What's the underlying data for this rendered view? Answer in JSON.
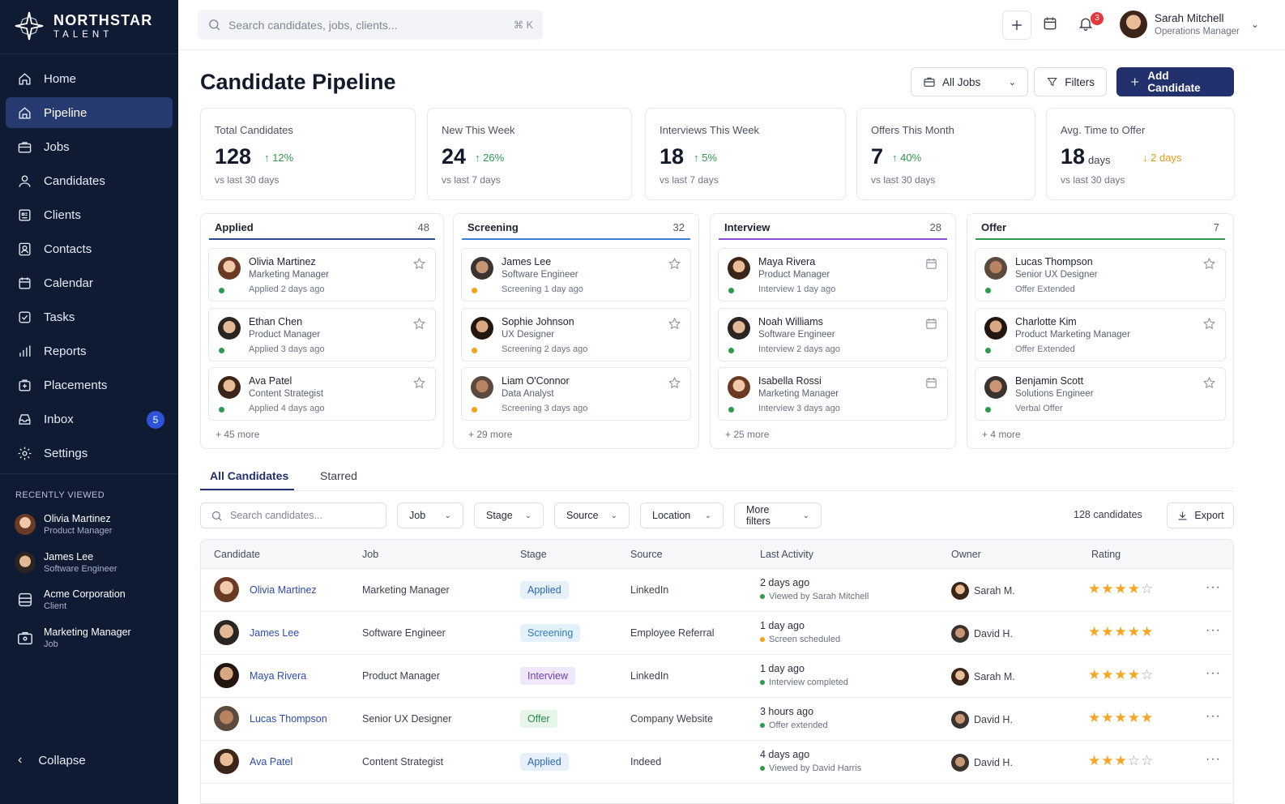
{
  "brand": {
    "name": "NORTHSTAR",
    "sub": "TALENT"
  },
  "nav": [
    {
      "label": "Home",
      "icon": "home-icon"
    },
    {
      "label": "Pipeline",
      "icon": "pipeline-icon",
      "active": true
    },
    {
      "label": "Jobs",
      "icon": "briefcase-icon"
    },
    {
      "label": "Candidates",
      "icon": "user-icon"
    },
    {
      "label": "Clients",
      "icon": "building-icon"
    },
    {
      "label": "Contacts",
      "icon": "contact-icon"
    },
    {
      "label": "Calendar",
      "icon": "calendar-icon"
    },
    {
      "label": "Tasks",
      "icon": "checkbox-icon"
    },
    {
      "label": "Reports",
      "icon": "bar-chart-icon"
    },
    {
      "label": "Placements",
      "icon": "placement-icon"
    },
    {
      "label": "Inbox",
      "icon": "inbox-icon",
      "badge": "5"
    },
    {
      "label": "Settings",
      "icon": "gear-icon"
    }
  ],
  "recent": {
    "title": "RECENTLY VIEWED",
    "items": [
      {
        "name": "Olivia Martinez",
        "sub": "Product Manager"
      },
      {
        "name": "James Lee",
        "sub": "Software Engineer"
      },
      {
        "name": "Acme Corporation",
        "sub": "Client"
      },
      {
        "name": "Marketing Manager",
        "sub": "Job"
      }
    ]
  },
  "collapse_label": "Collapse",
  "search": {
    "placeholder": "Search candidates, jobs, clients...",
    "shortcut": "⌘ K"
  },
  "notifications": {
    "count": "3"
  },
  "user": {
    "name": "Sarah Mitchell",
    "role": "Operations Manager"
  },
  "page": {
    "title": "Candidate Pipeline"
  },
  "actions": {
    "jobs_filter": "All Jobs",
    "filters": "Filters",
    "add": "Add Candidate"
  },
  "stats": [
    {
      "label": "Total Candidates",
      "value": "128",
      "unit": "",
      "delta": "12%",
      "dir": "up",
      "sub": "vs last 30 days"
    },
    {
      "label": "New This Week",
      "value": "24",
      "unit": "",
      "delta": "26%",
      "dir": "up",
      "sub": "vs last 7 days"
    },
    {
      "label": "Interviews This Week",
      "value": "18",
      "unit": "",
      "delta": "5%",
      "dir": "up",
      "sub": "vs last 7 days"
    },
    {
      "label": "Offers This Month",
      "value": "7",
      "unit": "",
      "delta": "40%",
      "dir": "up",
      "sub": "vs last 30 days"
    },
    {
      "label": "Avg. Time to Offer",
      "value": "18",
      "unit": "days",
      "delta": "2 days",
      "dir": "down",
      "sub": "vs last 30 days"
    }
  ],
  "pipeline": [
    {
      "stage": "Applied",
      "count": "48",
      "color": "#2c4a8f",
      "dot": "#2d9a4e",
      "more": "+ 45 more",
      "icon": "star-icon",
      "cards": [
        {
          "name": "Olivia Martinez",
          "role": "Marketing Manager",
          "status": "Applied 2 days ago"
        },
        {
          "name": "Ethan Chen",
          "role": "Product Manager",
          "status": "Applied 3 days ago"
        },
        {
          "name": "Ava Patel",
          "role": "Content Strategist",
          "status": "Applied 4 days ago"
        }
      ]
    },
    {
      "stage": "Screening",
      "count": "32",
      "color": "#3b7fd6",
      "dot": "#f0a515",
      "more": "+ 29 more",
      "icon": "star-icon",
      "cards": [
        {
          "name": "James Lee",
          "role": "Software Engineer",
          "status": "Screening 1 day ago"
        },
        {
          "name": "Sophie Johnson",
          "role": "UX Designer",
          "status": "Screening 2 days ago"
        },
        {
          "name": "Liam O'Connor",
          "role": "Data Analyst",
          "status": "Screening 3 days ago"
        }
      ]
    },
    {
      "stage": "Interview",
      "count": "28",
      "color": "#8a4fd6",
      "dot": "#2d9a4e",
      "more": "+ 25 more",
      "icon": "calendar-icon",
      "cards": [
        {
          "name": "Maya Rivera",
          "role": "Product Manager",
          "status": "Interview 1 day ago"
        },
        {
          "name": "Noah Williams",
          "role": "Software Engineer",
          "status": "Interview 2 days ago"
        },
        {
          "name": "Isabella Rossi",
          "role": "Marketing Manager",
          "status": "Interview 3 days ago"
        }
      ]
    },
    {
      "stage": "Offer",
      "count": "7",
      "color": "#2d9a4e",
      "dot": "#2d9a4e",
      "more": "+ 4 more",
      "icon": "star-icon",
      "cards": [
        {
          "name": "Lucas Thompson",
          "role": "Senior UX Designer",
          "status": "Offer Extended"
        },
        {
          "name": "Charlotte Kim",
          "role": "Product Marketing Manager",
          "status": "Offer Extended"
        },
        {
          "name": "Benjamin Scott",
          "role": "Solutions Engineer",
          "status": "Verbal Offer"
        }
      ]
    }
  ],
  "tabs": [
    "All Candidates",
    "Starred"
  ],
  "filters": {
    "search_placeholder": "Search candidates...",
    "dropdowns": [
      "Job",
      "Stage",
      "Source",
      "Location",
      "More filters"
    ],
    "count": "128 candidates",
    "export": "Export"
  },
  "table": {
    "columns": [
      "Candidate",
      "Job",
      "Stage",
      "Source",
      "Last Activity",
      "Owner",
      "Rating"
    ],
    "rows": [
      {
        "name": "Olivia Martinez",
        "job": "Marketing Manager",
        "stage": "Applied",
        "source": "LinkedIn",
        "activity": "2 days ago",
        "activity_sub": "Viewed by Sarah Mitchell",
        "dot": "#2d9a4e",
        "owner": "Sarah M.",
        "rating": 4
      },
      {
        "name": "James Lee",
        "job": "Software Engineer",
        "stage": "Screening",
        "source": "Employee Referral",
        "activity": "1 day ago",
        "activity_sub": "Screen scheduled",
        "dot": "#f0a515",
        "owner": "David H.",
        "rating": 5
      },
      {
        "name": "Maya Rivera",
        "job": "Product Manager",
        "stage": "Interview",
        "source": "LinkedIn",
        "activity": "1 day ago",
        "activity_sub": "Interview completed",
        "dot": "#2d9a4e",
        "owner": "Sarah M.",
        "rating": 4
      },
      {
        "name": "Lucas Thompson",
        "job": "Senior UX Designer",
        "stage": "Offer",
        "source": "Company Website",
        "activity": "3 hours ago",
        "activity_sub": "Offer extended",
        "dot": "#2d9a4e",
        "owner": "David H.",
        "rating": 5
      },
      {
        "name": "Ava Patel",
        "job": "Content Strategist",
        "stage": "Applied",
        "source": "Indeed",
        "activity": "4 days ago",
        "activity_sub": "Viewed by David Harris",
        "dot": "#2d9a4e",
        "owner": "David H.",
        "rating": 3
      }
    ]
  },
  "stage_colors": {
    "Applied": {
      "bg": "#e6f0fb",
      "fg": "#2e66b8"
    },
    "Screening": {
      "bg": "#e3f1fb",
      "fg": "#2e7bb8"
    },
    "Interview": {
      "bg": "#efe7fb",
      "fg": "#6b3fb8"
    },
    "Offer": {
      "bg": "#e5f5ea",
      "fg": "#2d8a48"
    }
  }
}
